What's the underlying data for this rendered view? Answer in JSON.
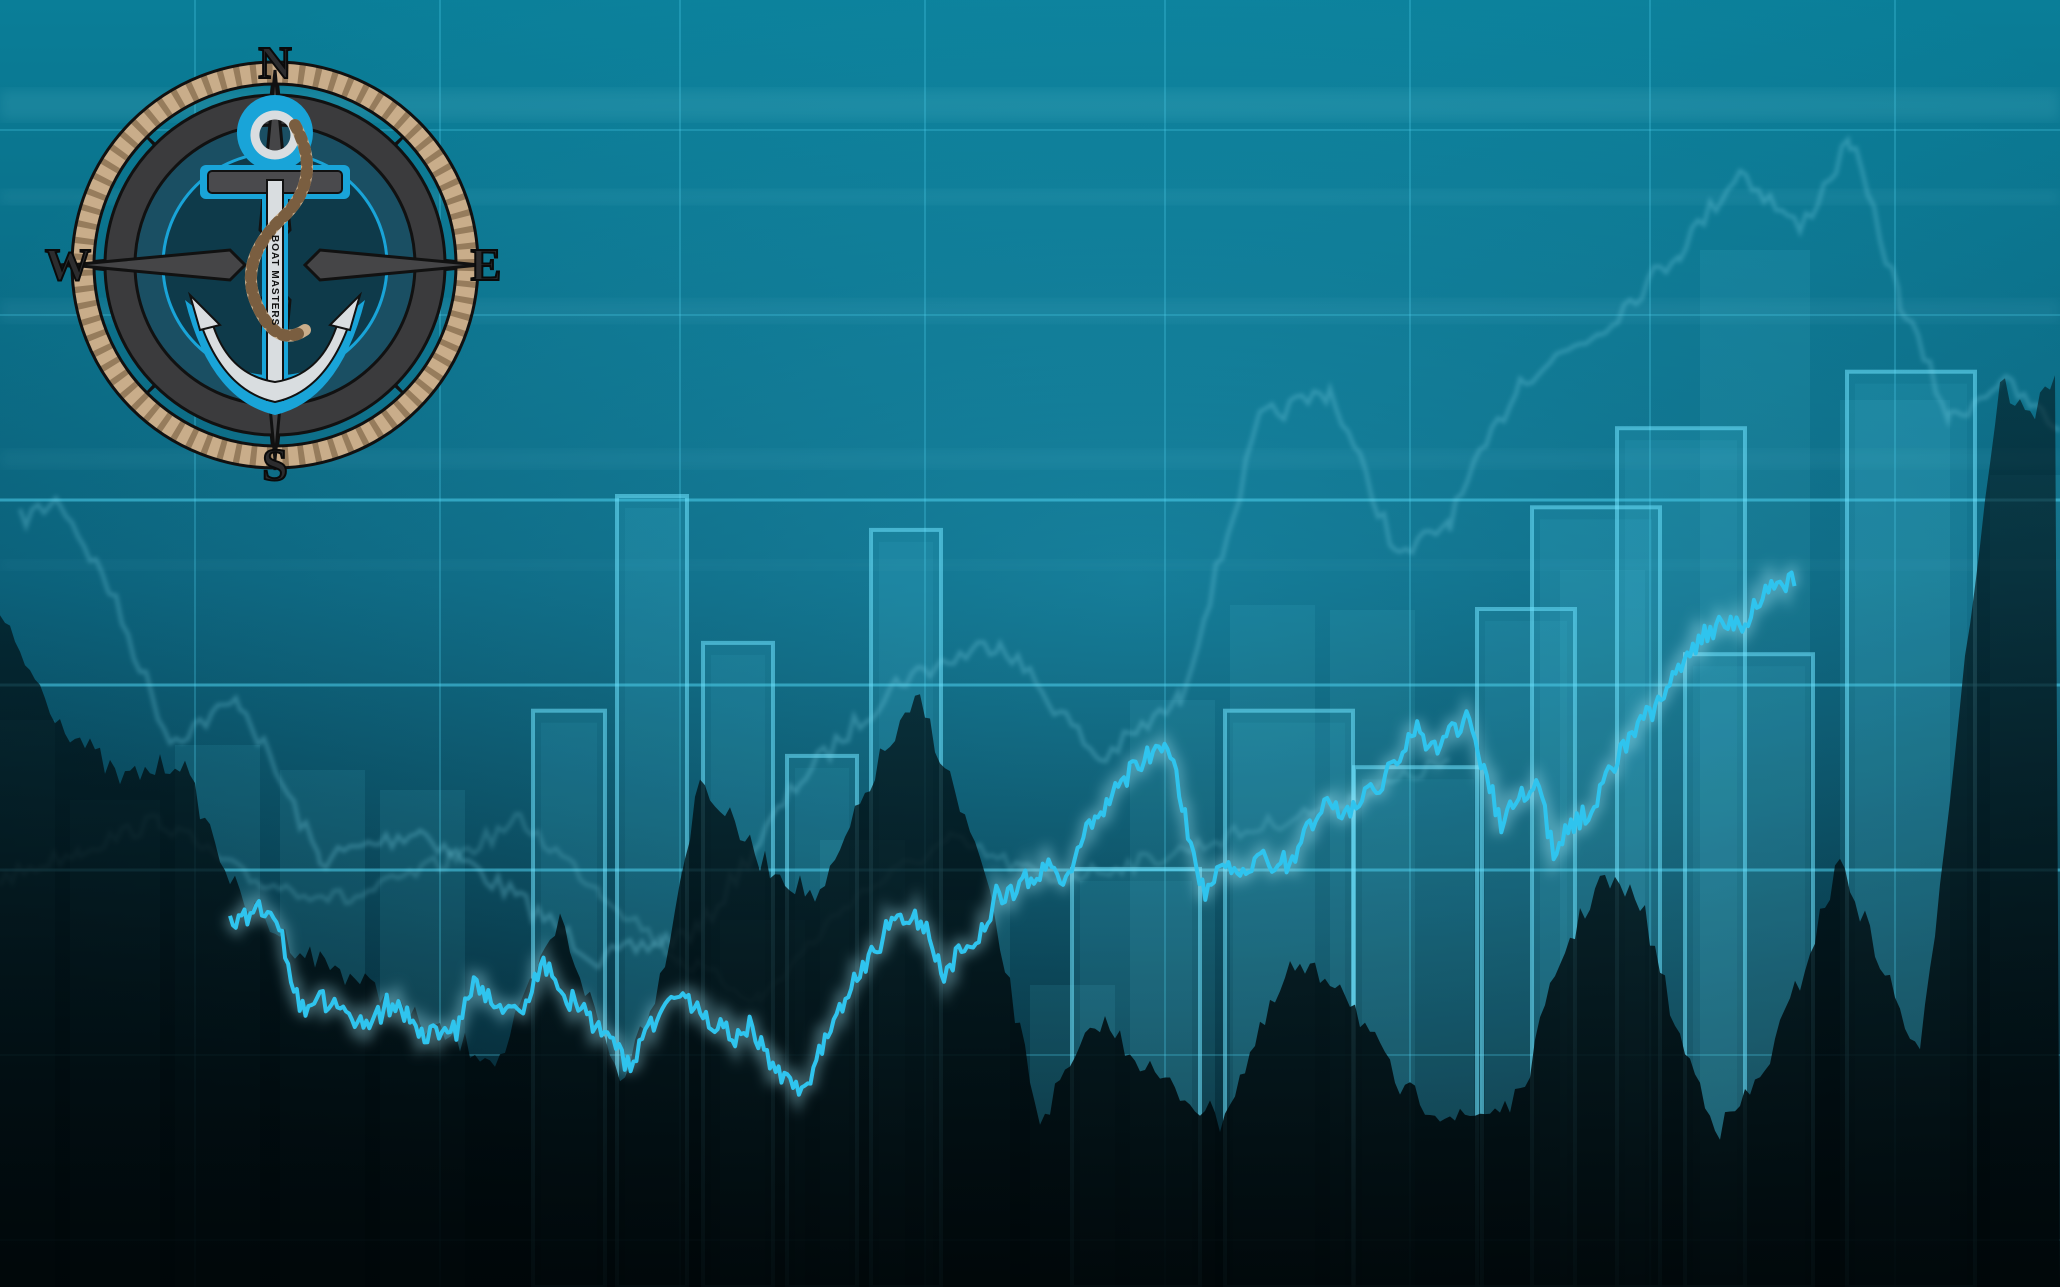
{
  "colors": {
    "background_top": "#0a7e98",
    "background_bottom": "#021016",
    "grid_line": "#4fd2ee",
    "bar_outline": "#6fe3ff",
    "main_line": "#2fc4ee",
    "ghost_line": "#7fd8ea",
    "rope": "#c9ad8a",
    "ring_dark": "#3b3b3d",
    "anchor_blue": "#19a4d8",
    "anchor_light": "#d9dde0"
  },
  "logo": {
    "compass": {
      "north": "N",
      "south": "S",
      "east": "E",
      "west": "W"
    },
    "shank_text": "BOAT MASTERS",
    "icon": "anchor-compass-icon"
  },
  "chart_data": {
    "type": "bar",
    "bars": [
      0.51,
      0.7,
      0.57,
      0.47,
      0.67,
      0.37,
      0.51,
      0.46,
      0.6,
      0.69,
      0.76,
      0.56,
      0.81
    ],
    "main_line": [
      0.38,
      0.4,
      0.41,
      0.36,
      0.25,
      0.26,
      0.27,
      0.23,
      0.22,
      0.26,
      0.25,
      0.21,
      0.21,
      0.22,
      0.3,
      0.27,
      0.25,
      0.25,
      0.33,
      0.27,
      0.26,
      0.22,
      0.2,
      0.16,
      0.22,
      0.26,
      0.27,
      0.24,
      0.23,
      0.21,
      0.23,
      0.16,
      0.14,
      0.13,
      0.19,
      0.25,
      0.3,
      0.34,
      0.39,
      0.4,
      0.37,
      0.31,
      0.34,
      0.36,
      0.43,
      0.44,
      0.46,
      0.47,
      0.45,
      0.53,
      0.55,
      0.6,
      0.63,
      0.65,
      0.65,
      0.53,
      0.43,
      0.48,
      0.46,
      0.49,
      0.48,
      0.48,
      0.54,
      0.58,
      0.55,
      0.59,
      0.6,
      0.64,
      0.69,
      0.66,
      0.68,
      0.7,
      0.63,
      0.54,
      0.58,
      0.61,
      0.5,
      0.54,
      0.56,
      0.61,
      0.66,
      0.7,
      0.73,
      0.78,
      0.82,
      0.84,
      0.86,
      0.85,
      0.9,
      0.92
    ]
  }
}
